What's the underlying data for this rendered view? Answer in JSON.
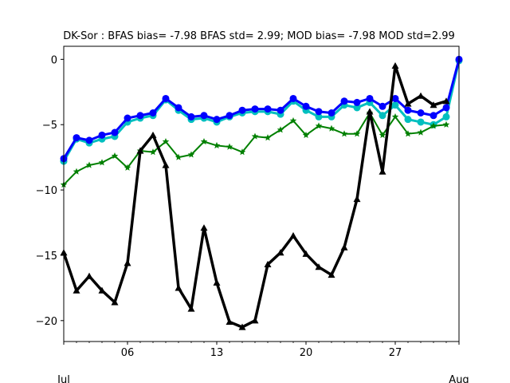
{
  "chart_data": {
    "type": "line",
    "title": "DK-Sor   : BFAS bias= -7.98 BFAS std= 2.99; MOD bias= -7.98 MOD std=2.99",
    "xlabel": "",
    "ylabel": "",
    "x_dates": [
      "2019-07-01",
      "2019-07-02",
      "2019-07-03",
      "2019-07-04",
      "2019-07-05",
      "2019-07-06",
      "2019-07-07",
      "2019-07-08",
      "2019-07-09",
      "2019-07-10",
      "2019-07-11",
      "2019-07-12",
      "2019-07-13",
      "2019-07-14",
      "2019-07-15",
      "2019-07-16",
      "2019-07-17",
      "2019-07-18",
      "2019-07-19",
      "2019-07-20",
      "2019-07-21",
      "2019-07-22",
      "2019-07-23",
      "2019-07-24",
      "2019-07-25",
      "2019-07-26",
      "2019-07-27",
      "2019-07-28",
      "2019-07-29",
      "2019-07-30",
      "2019-07-31",
      "2019-08-01"
    ],
    "xlim": [
      "2019-07-01",
      "2019-08-01"
    ],
    "ylim": [
      -21.6,
      1.0
    ],
    "x_tick_labels": [
      {
        "date": "2019-07-06",
        "label": "06"
      },
      {
        "date": "2019-07-13",
        "label": "13"
      },
      {
        "date": "2019-07-20",
        "label": "20"
      },
      {
        "date": "2019-07-27",
        "label": "27"
      }
    ],
    "x_sub_labels": [
      {
        "date": "2019-07-01",
        "label": "Jul"
      },
      {
        "date": "2019-08-01",
        "label": "Aug"
      }
    ],
    "y_ticks": [
      0,
      -5,
      -10,
      -15,
      -20
    ],
    "y_tick_labels": [
      "0",
      "−5",
      "−10",
      "−15",
      "−20"
    ],
    "grid": false,
    "series": [
      {
        "color": "#00bfbf",
        "marker": "circle",
        "line_width": 3,
        "values": [
          -7.8,
          -6.1,
          -6.4,
          -6.1,
          -5.9,
          -4.8,
          -4.5,
          -4.3,
          -3.1,
          -3.9,
          -4.6,
          -4.5,
          -4.8,
          -4.4,
          -4.1,
          -4.0,
          -4.0,
          -4.2,
          -3.2,
          -3.9,
          -4.4,
          -4.4,
          -3.5,
          -3.7,
          -3.3,
          -4.3,
          -3.5,
          -4.6,
          -4.8,
          -5.0,
          -4.4,
          -0.1
        ]
      },
      {
        "color": "#0000ff",
        "marker": "circle",
        "line_width": 3,
        "values": [
          -7.6,
          -6.0,
          -6.2,
          -5.8,
          -5.6,
          -4.5,
          -4.3,
          -4.1,
          -3.0,
          -3.7,
          -4.4,
          -4.3,
          -4.6,
          -4.3,
          -3.9,
          -3.8,
          -3.8,
          -3.9,
          -3.0,
          -3.6,
          -4.0,
          -4.1,
          -3.2,
          -3.3,
          -3.0,
          -3.6,
          -3.0,
          -3.9,
          -4.1,
          -4.3,
          -3.7,
          0.0
        ]
      },
      {
        "color": "#008000",
        "marker": "star",
        "line_width": 2,
        "values": [
          -9.6,
          -8.6,
          -8.1,
          -7.9,
          -7.4,
          -8.3,
          -7.0,
          -7.1,
          -6.3,
          -7.5,
          -7.3,
          -6.3,
          -6.6,
          -6.7,
          -7.1,
          -5.9,
          -6.0,
          -5.4,
          -4.7,
          -5.8,
          -5.1,
          -5.3,
          -5.7,
          -5.7,
          -4.1,
          -5.8,
          -4.4,
          -5.7,
          -5.6,
          -5.1,
          -5.0,
          null
        ]
      },
      {
        "color": "#000000",
        "marker": "triangle",
        "line_width": 3.5,
        "values": [
          -14.8,
          -17.7,
          -16.6,
          -17.7,
          -18.6,
          -15.6,
          -7.0,
          -5.8,
          -8.1,
          -17.5,
          -19.1,
          -12.9,
          -17.1,
          -20.1,
          -20.5,
          -20.0,
          -15.7,
          -14.8,
          -13.5,
          -14.9,
          -15.9,
          -16.5,
          -14.4,
          -10.7,
          -4.0,
          -8.6,
          -0.5,
          -3.4,
          -2.8,
          -3.5,
          -3.2,
          null
        ]
      }
    ]
  }
}
